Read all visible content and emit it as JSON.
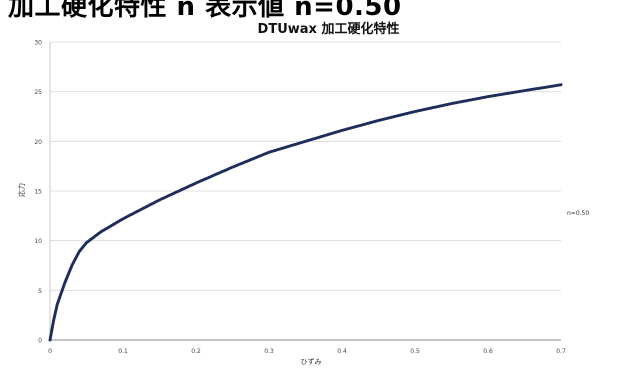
{
  "page_banner": "加工硬化特性 n 表示値 n=0.50",
  "chart_data": {
    "type": "scatter",
    "title": "DTUwax  加工硬化特性",
    "xlabel": "ひずみ",
    "ylabel": "応力",
    "xlim": [
      0,
      0.7
    ],
    "ylim": [
      0,
      30
    ],
    "xticks": [
      "0",
      "0.1",
      "0.2",
      "0.3",
      "0.4",
      "0.5",
      "0.6",
      "0.7"
    ],
    "yticks": [
      "0",
      "5",
      "10",
      "15",
      "20",
      "25",
      "30"
    ],
    "grid": "horizontal",
    "legend_position": "right",
    "series": [
      {
        "name": "n=0.50",
        "color": "#1f2d5a",
        "x": [
          0,
          0.005,
          0.01,
          0.02,
          0.03,
          0.04,
          0.05,
          0.07,
          0.1,
          0.15,
          0.2,
          0.25,
          0.3,
          0.35,
          0.4,
          0.45,
          0.5,
          0.55,
          0.6,
          0.65,
          0.7
        ],
        "y": [
          0,
          2.0,
          3.6,
          5.7,
          7.5,
          8.9,
          9.8,
          10.9,
          12.2,
          14.1,
          15.8,
          17.4,
          18.9,
          20.0,
          21.1,
          22.1,
          23.0,
          23.8,
          24.5,
          25.1,
          25.7
        ]
      }
    ]
  }
}
